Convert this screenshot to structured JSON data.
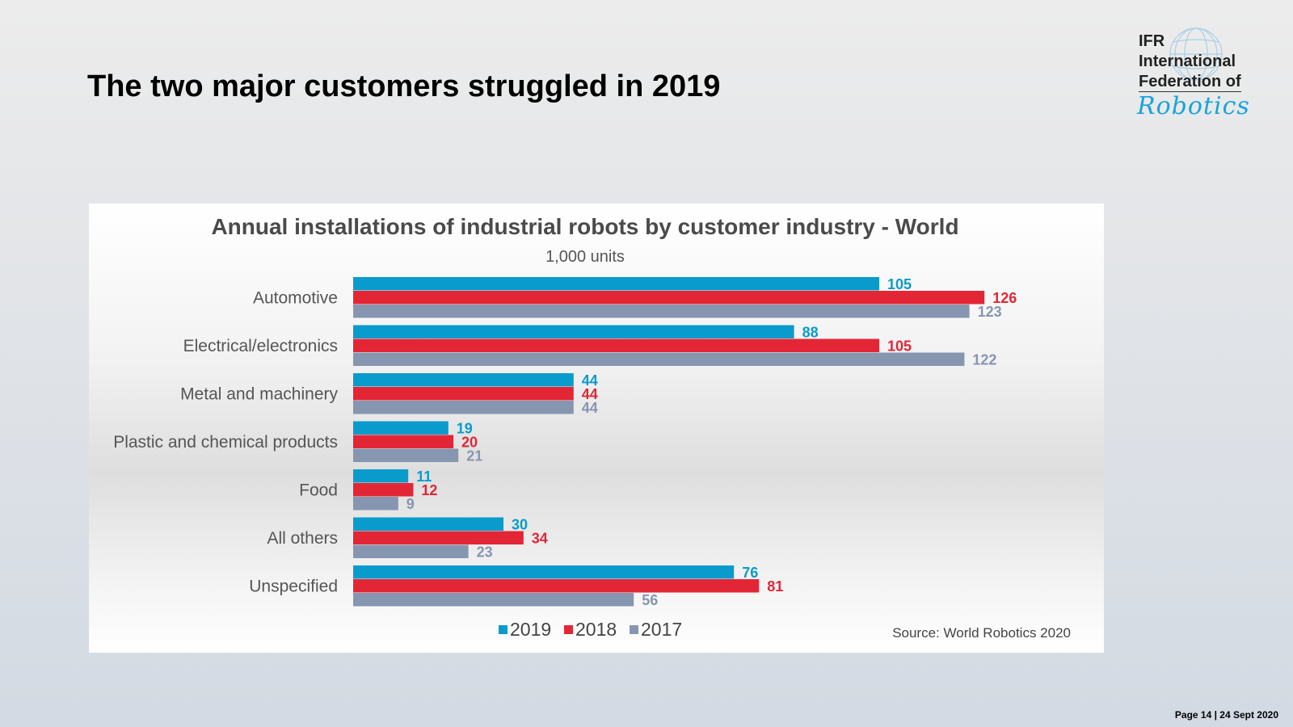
{
  "slide": {
    "title": "The two major customers struggled in 2019",
    "footer": "Page 14 | 24 Sept 2020"
  },
  "logo": {
    "line1": "IFR",
    "line2": "International",
    "line3": "Federation of",
    "script": "Robotics"
  },
  "colors": {
    "2019": "#0a9bcd",
    "2018": "#e32636",
    "2017": "#8696b0"
  },
  "chart_data": {
    "type": "bar",
    "orientation": "horizontal",
    "title": "Annual installations of industrial robots by customer industry - World",
    "subtitle": "1,000 units",
    "xlabel": "",
    "ylabel": "",
    "xlim": [
      0,
      140
    ],
    "grid": false,
    "legend_position": "bottom-center",
    "source": "Source: World Robotics 2020",
    "categories": [
      "Automotive",
      "Electrical/electronics",
      "Metal and machinery",
      "Plastic and chemical products",
      "Food",
      "All others",
      "Unspecified"
    ],
    "series": [
      {
        "name": "2019",
        "color": "#0a9bcd",
        "values": [
          105,
          88,
          44,
          19,
          11,
          30,
          76
        ]
      },
      {
        "name": "2018",
        "color": "#e32636",
        "values": [
          126,
          105,
          44,
          20,
          12,
          34,
          81
        ]
      },
      {
        "name": "2017",
        "color": "#8696b0",
        "values": [
          123,
          122,
          44,
          21,
          9,
          23,
          56
        ]
      }
    ]
  }
}
